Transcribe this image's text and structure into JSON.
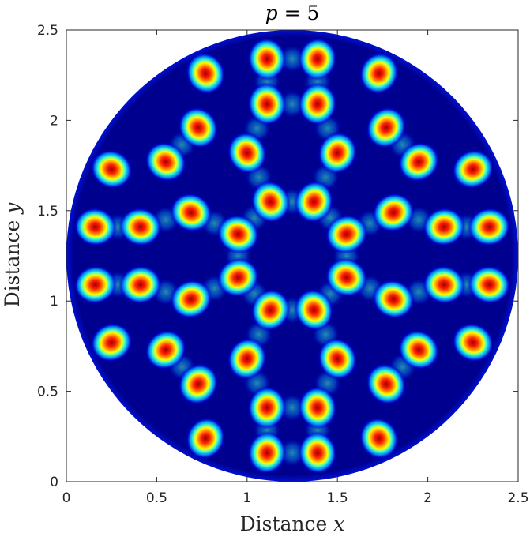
{
  "chart_data": {
    "type": "heatmap",
    "title_text": "p = 5",
    "title_var": "p",
    "title_eq": " = 5",
    "xlabel_text": "Distance ",
    "xlabel_var": "x",
    "ylabel_text": "Distance ",
    "ylabel_var": "y",
    "xlim": [
      0,
      2.5
    ],
    "ylim": [
      0,
      2.5
    ],
    "xticks": [
      "0",
      "0.5",
      "1",
      "1.5",
      "2",
      "2.5"
    ],
    "yticks": [
      "0",
      "0.5",
      "1",
      "1.5",
      "2",
      "2.5"
    ],
    "domain": {
      "shape": "disk",
      "center": [
        1.25,
        1.25
      ],
      "radius": 1.25
    },
    "colormap": "jet",
    "grid": false,
    "spots": [
      {
        "x": 1.11,
        "y": 2.34
      },
      {
        "x": 1.39,
        "y": 2.34
      },
      {
        "x": 1.11,
        "y": 2.09
      },
      {
        "x": 1.39,
        "y": 2.09
      },
      {
        "x": 0.77,
        "y": 2.26
      },
      {
        "x": 1.73,
        "y": 2.26
      },
      {
        "x": 0.73,
        "y": 1.96
      },
      {
        "x": 1.77,
        "y": 1.96
      },
      {
        "x": 1.0,
        "y": 1.82
      },
      {
        "x": 1.5,
        "y": 1.82
      },
      {
        "x": 0.55,
        "y": 1.77
      },
      {
        "x": 1.95,
        "y": 1.77
      },
      {
        "x": 0.25,
        "y": 1.73
      },
      {
        "x": 2.25,
        "y": 1.73
      },
      {
        "x": 1.13,
        "y": 1.55
      },
      {
        "x": 1.37,
        "y": 1.55
      },
      {
        "x": 0.69,
        "y": 1.49
      },
      {
        "x": 1.81,
        "y": 1.49
      },
      {
        "x": 0.16,
        "y": 1.41
      },
      {
        "x": 0.41,
        "y": 1.41
      },
      {
        "x": 2.09,
        "y": 1.41
      },
      {
        "x": 2.34,
        "y": 1.41
      },
      {
        "x": 0.95,
        "y": 1.37
      },
      {
        "x": 1.55,
        "y": 1.37
      },
      {
        "x": 0.95,
        "y": 1.13
      },
      {
        "x": 1.55,
        "y": 1.13
      },
      {
        "x": 0.16,
        "y": 1.09
      },
      {
        "x": 0.41,
        "y": 1.09
      },
      {
        "x": 2.09,
        "y": 1.09
      },
      {
        "x": 2.34,
        "y": 1.09
      },
      {
        "x": 0.69,
        "y": 1.01
      },
      {
        "x": 1.81,
        "y": 1.01
      },
      {
        "x": 1.13,
        "y": 0.95
      },
      {
        "x": 1.37,
        "y": 0.95
      },
      {
        "x": 0.25,
        "y": 0.77
      },
      {
        "x": 2.25,
        "y": 0.77
      },
      {
        "x": 0.55,
        "y": 0.73
      },
      {
        "x": 1.95,
        "y": 0.73
      },
      {
        "x": 1.0,
        "y": 0.68
      },
      {
        "x": 1.5,
        "y": 0.68
      },
      {
        "x": 0.73,
        "y": 0.54
      },
      {
        "x": 1.77,
        "y": 0.54
      },
      {
        "x": 1.11,
        "y": 0.41
      },
      {
        "x": 1.39,
        "y": 0.41
      },
      {
        "x": 0.77,
        "y": 0.24
      },
      {
        "x": 1.73,
        "y": 0.24
      },
      {
        "x": 1.11,
        "y": 0.16
      },
      {
        "x": 1.39,
        "y": 0.16
      }
    ],
    "colors": {
      "background": "#00008f",
      "core": "#a00000",
      "mid_red": "#ff2000",
      "orange": "#ffa000",
      "yellow": "#ffff00",
      "cyan": "#40ffd0",
      "light_blue": "#00a0ff",
      "blue": "#0000ff"
    }
  }
}
